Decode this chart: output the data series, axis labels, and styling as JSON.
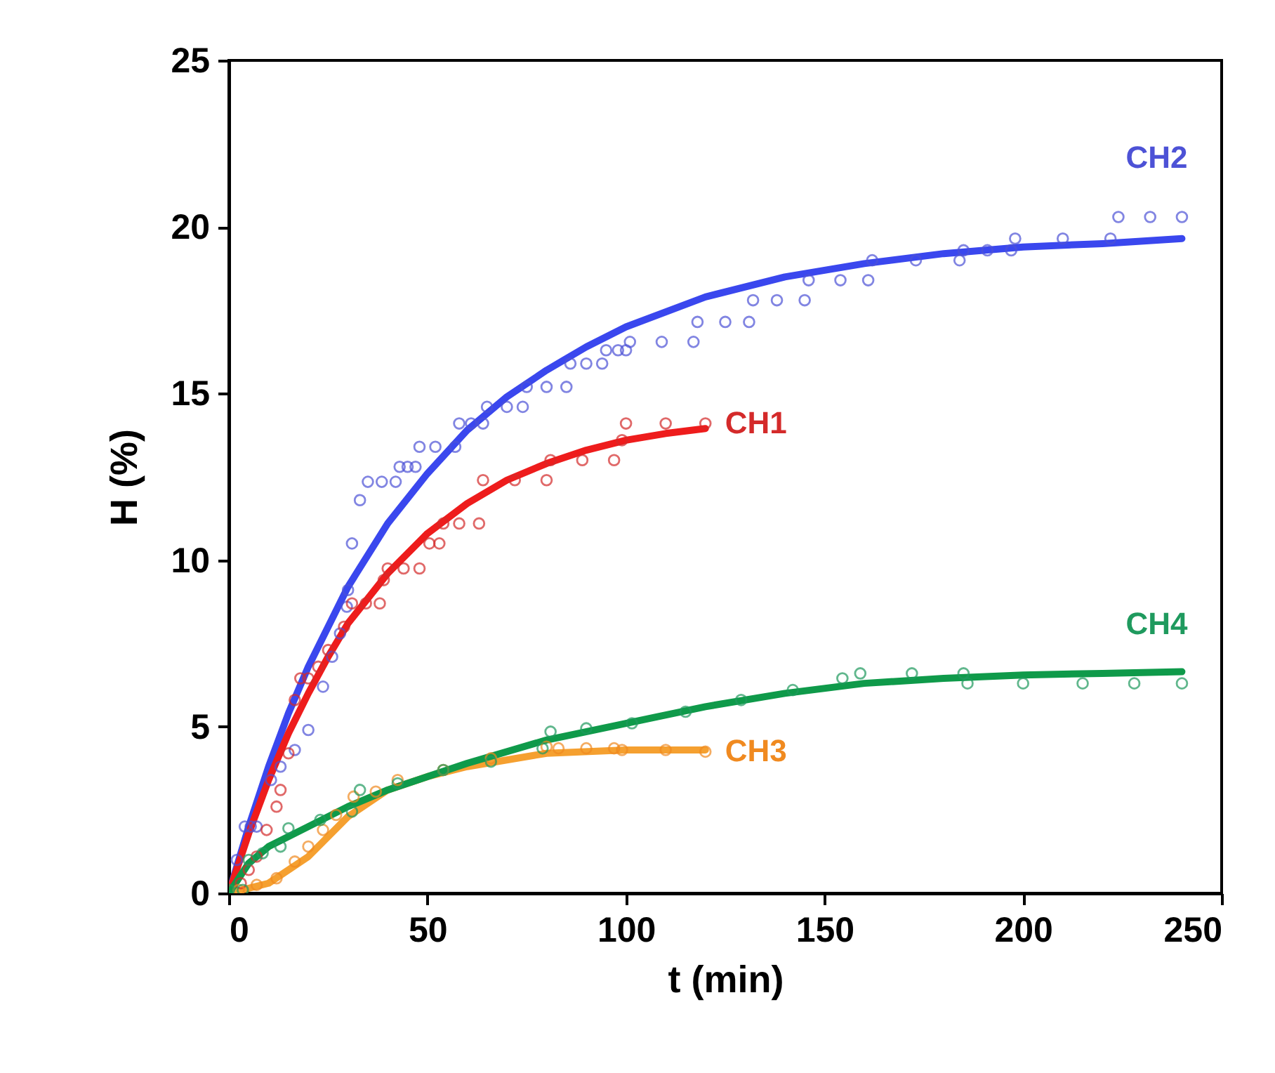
{
  "chart_data": {
    "type": "scatter",
    "xlabel": "t (min)",
    "ylabel": "H (%)",
    "xlim": [
      0,
      250
    ],
    "xticks": [
      0,
      50,
      100,
      150,
      200,
      250
    ],
    "ylim": [
      0,
      25
    ],
    "yticks": [
      0,
      5,
      10,
      15,
      20,
      25
    ],
    "grid": false,
    "series": [
      {
        "name": "CH2",
        "color": "#4d52d6",
        "x": [
          2,
          4,
          5.5,
          7,
          10.6,
          13,
          16.6,
          20,
          23.7,
          26,
          28,
          29.7,
          30,
          31,
          33,
          35,
          38.5,
          42,
          43,
          45,
          47,
          48,
          52,
          57,
          58,
          61,
          64,
          65,
          70,
          74,
          75,
          80,
          85,
          86,
          90,
          94,
          95,
          98,
          100,
          101,
          109,
          117,
          118,
          125,
          131,
          132,
          138,
          145,
          146,
          154,
          161,
          162,
          173,
          184,
          185,
          191,
          197,
          198,
          210,
          222,
          224,
          232,
          240
        ],
        "values": [
          1.0,
          2.0,
          2.0,
          2.0,
          3.4,
          3.8,
          4.3,
          4.9,
          6.2,
          7.1,
          7.8,
          8.6,
          9.1,
          10.5,
          11.8,
          12.35,
          12.35,
          12.35,
          12.8,
          12.8,
          12.8,
          13.4,
          13.4,
          13.4,
          14.1,
          14.1,
          14.1,
          14.6,
          14.6,
          14.6,
          15.2,
          15.2,
          15.2,
          15.9,
          15.9,
          15.9,
          16.3,
          16.3,
          16.3,
          16.55,
          16.55,
          16.55,
          17.15,
          17.15,
          17.15,
          17.8,
          17.8,
          17.8,
          18.4,
          18.4,
          18.4,
          19.0,
          19.0,
          19.0,
          19.3,
          19.3,
          19.3,
          19.65,
          19.65,
          19.65,
          20.3,
          20.3,
          20.3
        ]
      },
      {
        "type": "line",
        "color": "#3a47ee",
        "x": [
          0,
          5,
          10,
          15,
          20,
          25,
          30,
          40,
          50,
          60,
          70,
          80,
          90,
          100,
          120,
          140,
          160,
          180,
          200,
          220,
          240
        ],
        "values": [
          0,
          2.0,
          3.8,
          5.4,
          6.8,
          8.0,
          9.2,
          11.1,
          12.6,
          13.9,
          14.9,
          15.7,
          16.4,
          17.0,
          17.9,
          18.5,
          18.9,
          19.2,
          19.4,
          19.5,
          19.65
        ]
      },
      {
        "name": "CH1",
        "color": "#d42a2a",
        "x": [
          3,
          5,
          7,
          9.5,
          12,
          13,
          15,
          16.6,
          18,
          20,
          22.5,
          25,
          29,
          31,
          34.5,
          38,
          39,
          40,
          44,
          48,
          50.5,
          53,
          54,
          58,
          63,
          64,
          72,
          80,
          81,
          89,
          97,
          99,
          100,
          110,
          120
        ],
        "values": [
          0.3,
          0.7,
          1.1,
          1.9,
          2.6,
          3.1,
          4.2,
          5.8,
          6.45,
          6.45,
          6.8,
          7.3,
          8.0,
          8.7,
          8.7,
          8.7,
          9.4,
          9.75,
          9.75,
          9.75,
          10.5,
          10.5,
          11.1,
          11.1,
          11.1,
          12.4,
          12.4,
          12.4,
          13.0,
          13.0,
          13.0,
          13.6,
          14.1,
          14.1,
          14.1
        ]
      },
      {
        "type": "line",
        "color": "#ee1c1c",
        "x": [
          0,
          5,
          10,
          15,
          20,
          25,
          30,
          40,
          50,
          60,
          70,
          80,
          90,
          100,
          110,
          120
        ],
        "values": [
          0,
          1.8,
          3.4,
          4.8,
          6.0,
          7.1,
          8.1,
          9.6,
          10.8,
          11.7,
          12.4,
          12.9,
          13.3,
          13.6,
          13.8,
          13.95
        ]
      },
      {
        "name": "CH3",
        "color": "#f08a20",
        "x": [
          2.5,
          7,
          12,
          16.6,
          20,
          23.7,
          27,
          31.4,
          37,
          42.5,
          54,
          66,
          80,
          83,
          90,
          97,
          99,
          110,
          120
        ],
        "values": [
          0.1,
          0.25,
          0.45,
          0.95,
          1.4,
          1.9,
          2.35,
          2.9,
          3.05,
          3.4,
          3.7,
          4.05,
          4.4,
          4.35,
          4.35,
          4.35,
          4.3,
          4.3,
          4.25
        ]
      },
      {
        "type": "line",
        "color": "#f5a030",
        "x": [
          0,
          10,
          20,
          30,
          40,
          50,
          60,
          80,
          100,
          120
        ],
        "values": [
          0,
          0.3,
          1.1,
          2.3,
          3.1,
          3.5,
          3.8,
          4.2,
          4.3,
          4.3
        ]
      },
      {
        "name": "CH4",
        "color": "#1f9a5e",
        "x": [
          0,
          3.5,
          5,
          8.5,
          13,
          15,
          23,
          31,
          33,
          42.5,
          54,
          66,
          79,
          81,
          90,
          101.5,
          115,
          129,
          142,
          154.5,
          159,
          172,
          185,
          186,
          200,
          215,
          228,
          240
        ],
        "values": [
          0.1,
          0.1,
          1.0,
          1.2,
          1.4,
          1.95,
          2.2,
          2.45,
          3.1,
          3.3,
          3.7,
          3.95,
          4.35,
          4.85,
          4.95,
          5.1,
          5.45,
          5.8,
          6.1,
          6.45,
          6.6,
          6.6,
          6.6,
          6.3,
          6.3,
          6.3,
          6.3,
          6.3
        ]
      },
      {
        "type": "line",
        "color": "#0f9a4a",
        "x": [
          0,
          5,
          10,
          20,
          30,
          40,
          60,
          80,
          100,
          120,
          140,
          160,
          180,
          200,
          220,
          240
        ],
        "values": [
          0,
          0.9,
          1.4,
          2.0,
          2.6,
          3.1,
          3.9,
          4.6,
          5.1,
          5.6,
          6.0,
          6.3,
          6.45,
          6.55,
          6.6,
          6.65
        ]
      }
    ]
  }
}
